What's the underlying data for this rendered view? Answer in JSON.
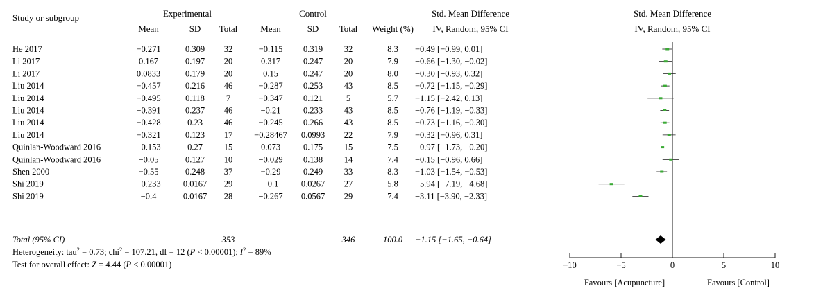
{
  "table": {
    "headers": {
      "study": "Study or subgroup",
      "experimental": "Experimental",
      "control": "Control",
      "mean": "Mean",
      "sd": "SD",
      "total": "Total",
      "weight": "Weight (%)",
      "smd_title": "Std. Mean Difference",
      "smd_method": "IV, Random, 95% CI",
      "plot_title": "Std. Mean Difference",
      "plot_method": "IV, Random, 95% CI"
    },
    "rows": [
      {
        "study": "He 2017",
        "e_mean": "−0.271",
        "e_sd": "0.309",
        "e_total": "32",
        "c_mean": "−0.115",
        "c_sd": "0.319",
        "c_total": "32",
        "weight": "8.3",
        "ci": "−0.49 [−0.99, 0.01]"
      },
      {
        "study": "Li 2017",
        "e_mean": "0.167",
        "e_sd": "0.197",
        "e_total": "20",
        "c_mean": "0.317",
        "c_sd": "0.247",
        "c_total": "20",
        "weight": "7.9",
        "ci": "−0.66 [−1.30, −0.02]"
      },
      {
        "study": "Li 2017",
        "e_mean": "0.0833",
        "e_sd": "0.179",
        "e_total": "20",
        "c_mean": "0.15",
        "c_sd": "0.247",
        "c_total": "20",
        "weight": "8.0",
        "ci": "−0.30 [−0.93, 0.32]"
      },
      {
        "study": "Liu 2014",
        "e_mean": "−0.457",
        "e_sd": "0.216",
        "e_total": "46",
        "c_mean": "−0.287",
        "c_sd": "0.253",
        "c_total": "43",
        "weight": "8.5",
        "ci": "−0.72 [−1.15, −0.29]"
      },
      {
        "study": "Liu 2014",
        "e_mean": "−0.495",
        "e_sd": "0.118",
        "e_total": "7",
        "c_mean": "−0.347",
        "c_sd": "0.121",
        "c_total": "5",
        "weight": "5.7",
        "ci": "−1.15 [−2.42, 0.13]"
      },
      {
        "study": "Liu 2014",
        "e_mean": "−0.391",
        "e_sd": "0.237",
        "e_total": "46",
        "c_mean": "−0.21",
        "c_sd": "0.233",
        "c_total": "43",
        "weight": "8.5",
        "ci": "−0.76 [−1.19, −0.33]"
      },
      {
        "study": "Liu 2014",
        "e_mean": "−0.428",
        "e_sd": "0.23",
        "e_total": "46",
        "c_mean": "−0.245",
        "c_sd": "0.266",
        "c_total": "43",
        "weight": "8.5",
        "ci": "−0.73 [−1.16, −0.30]"
      },
      {
        "study": "Liu 2014",
        "e_mean": "−0.321",
        "e_sd": "0.123",
        "e_total": "17",
        "c_mean": "−0.28467",
        "c_sd": "0.0993",
        "c_total": "22",
        "weight": "7.9",
        "ci": "−0.32 [−0.96, 0.31]"
      },
      {
        "study": "Quinlan-Woodward 2016",
        "e_mean": "−0.153",
        "e_sd": "0.27",
        "e_total": "15",
        "c_mean": "0.073",
        "c_sd": "0.175",
        "c_total": "15",
        "weight": "7.5",
        "ci": "−0.97 [−1.73, −0.20]"
      },
      {
        "study": "Quinlan-Woodward 2016",
        "e_mean": "−0.05",
        "e_sd": "0.127",
        "e_total": "10",
        "c_mean": "−0.029",
        "c_sd": "0.138",
        "c_total": "14",
        "weight": "7.4",
        "ci": "−0.15 [−0.96, 0.66]"
      },
      {
        "study": "Shen 2000",
        "e_mean": "−0.55",
        "e_sd": "0.248",
        "e_total": "37",
        "c_mean": "−0.29",
        "c_sd": "0.249",
        "c_total": "33",
        "weight": "8.3",
        "ci": "−1.03 [−1.54, −0.53]"
      },
      {
        "study": "Shi 2019",
        "e_mean": "−0.233",
        "e_sd": "0.0167",
        "e_total": "29",
        "c_mean": "−0.1",
        "c_sd": "0.0267",
        "c_total": "27",
        "weight": "5.8",
        "ci": "−5.94 [−7.19, −4.68]"
      },
      {
        "study": "Shi 2019",
        "e_mean": "−0.4",
        "e_sd": "0.0167",
        "e_total": "28",
        "c_mean": "−0.267",
        "c_sd": "0.0567",
        "c_total": "29",
        "weight": "7.4",
        "ci": "−3.11 [−3.90, −2.33]"
      }
    ],
    "total": {
      "label": "Total (95% CI)",
      "e_total": "353",
      "c_total": "346",
      "weight": "100.0",
      "ci": "−1.15 [−1.65, −0.64]"
    },
    "heterogeneity": {
      "prefix": "Heterogeneity: tau",
      "tau_sup": "2",
      "tau_val": " = 0.73; chi",
      "chi_sup": "2",
      "chi_val": " = 107.21, df = 12 (",
      "p_sym": "P",
      "p_val": " < 0.00001); ",
      "i_sym": "I",
      "i_sup": "2",
      "i_val": " = 89%"
    },
    "overall": {
      "prefix": "Test for overall effect: ",
      "z_sym": "Z",
      "z_val": " = 4.44 (",
      "p_sym": "P",
      "p_val": " < 0.00001)"
    }
  },
  "chart_data": {
    "type": "forest",
    "xlim": [
      -10,
      10
    ],
    "ticks": [
      -10,
      -5,
      0,
      5,
      10
    ],
    "tick_labels": [
      "−10",
      "−5",
      "0",
      "5",
      "10"
    ],
    "favours_left": "Favours [Acupuncture]",
    "favours_right": "Favours [Control]",
    "studies": [
      {
        "est": -0.49,
        "lo": -0.99,
        "hi": 0.01
      },
      {
        "est": -0.66,
        "lo": -1.3,
        "hi": -0.02
      },
      {
        "est": -0.3,
        "lo": -0.93,
        "hi": 0.32
      },
      {
        "est": -0.72,
        "lo": -1.15,
        "hi": -0.29
      },
      {
        "est": -1.15,
        "lo": -2.42,
        "hi": 0.13
      },
      {
        "est": -0.76,
        "lo": -1.19,
        "hi": -0.33
      },
      {
        "est": -0.73,
        "lo": -1.16,
        "hi": -0.3
      },
      {
        "est": -0.32,
        "lo": -0.96,
        "hi": 0.31
      },
      {
        "est": -0.97,
        "lo": -1.73,
        "hi": -0.2
      },
      {
        "est": -0.15,
        "lo": -0.96,
        "hi": 0.66
      },
      {
        "est": -1.03,
        "lo": -1.54,
        "hi": -0.53
      },
      {
        "est": -5.94,
        "lo": -7.19,
        "hi": -4.68
      },
      {
        "est": -3.11,
        "lo": -3.9,
        "hi": -2.33
      }
    ],
    "pooled": {
      "est": -1.15,
      "lo": -1.65,
      "hi": -0.64
    },
    "colors": {
      "square": "#3aaa35",
      "line": "#1a1a1a",
      "diamond": "#000000"
    }
  }
}
